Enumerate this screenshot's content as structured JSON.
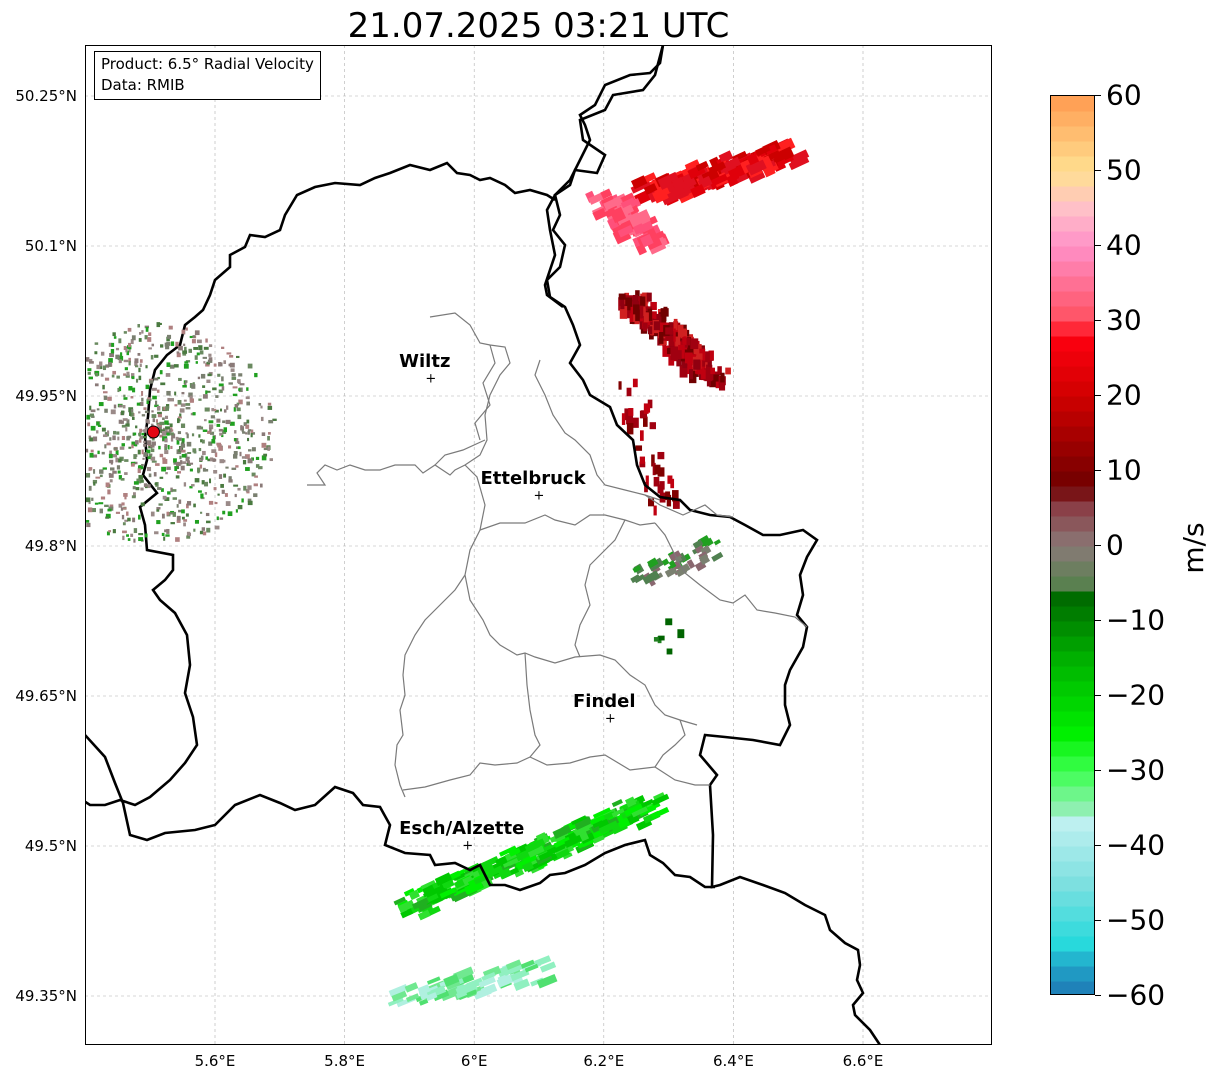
{
  "title": "21.07.2025 03:21 UTC",
  "info_box": {
    "product": "Product: 6.5° Radial Velocity",
    "data": "Data: RMIB"
  },
  "axes": {
    "lat_labels": [
      "50.25°N",
      "50.1°N",
      "49.95°N",
      "49.8°N",
      "49.65°N",
      "49.5°N",
      "49.35°N"
    ],
    "lon_labels": [
      "5.6°E",
      "5.8°E",
      "6°E",
      "6.2°E",
      "6.4°E",
      "6.6°E"
    ],
    "lat_values": [
      50.25,
      50.1,
      49.95,
      49.8,
      49.65,
      49.5,
      49.35
    ],
    "lon_values": [
      5.6,
      5.8,
      6.0,
      6.2,
      6.4,
      6.6
    ],
    "grid": true
  },
  "cities": [
    {
      "name": "Wiltz",
      "lon": 5.933,
      "lat": 49.967
    },
    {
      "name": "Ettelbruck",
      "lon": 6.1,
      "lat": 49.85
    },
    {
      "name": "Findel",
      "lon": 6.21,
      "lat": 49.627
    },
    {
      "name": "Esch/Alzette",
      "lon": 5.99,
      "lat": 49.5
    }
  ],
  "radar_site": {
    "lon": 5.505,
    "lat": 49.914,
    "color": "#e30613"
  },
  "colorbar": {
    "unit": "m/s",
    "min": -60,
    "max": 60,
    "tick_labels": [
      "60",
      "50",
      "40",
      "30",
      "20",
      "10",
      "0",
      "−10",
      "−20",
      "−30",
      "−40",
      "−50",
      "−60"
    ],
    "tick_values": [
      60,
      50,
      40,
      30,
      20,
      10,
      0,
      -10,
      -20,
      -30,
      -40,
      -50,
      -60
    ],
    "stops": [
      {
        "v": -60,
        "c": "#1f77b4"
      },
      {
        "v": -56,
        "c": "#20a4c8"
      },
      {
        "v": -53,
        "c": "#28d9dc"
      },
      {
        "v": -45,
        "c": "#7de0e0"
      },
      {
        "v": -37,
        "c": "#bdf0f0"
      },
      {
        "v": -35,
        "c": "#8ef0b0"
      },
      {
        "v": -30,
        "c": "#3cff50"
      },
      {
        "v": -25,
        "c": "#00f000"
      },
      {
        "v": -15,
        "c": "#00b000"
      },
      {
        "v": -6,
        "c": "#006400"
      },
      {
        "v": -5,
        "c": "#5a8050"
      },
      {
        "v": 0,
        "c": "#8a7a78"
      },
      {
        "v": 5,
        "c": "#8a4048"
      },
      {
        "v": 8,
        "c": "#700000"
      },
      {
        "v": 20,
        "c": "#d00000"
      },
      {
        "v": 28,
        "c": "#ff0010"
      },
      {
        "v": 30,
        "c": "#ff5060"
      },
      {
        "v": 40,
        "c": "#ff90c8"
      },
      {
        "v": 45,
        "c": "#ffc0c8"
      },
      {
        "v": 50,
        "c": "#ffe090"
      },
      {
        "v": 60,
        "c": "#ff9a50"
      }
    ]
  },
  "echo_regions": [
    {
      "name": "north-east-inbound",
      "color": "#e0000a"
    },
    {
      "name": "north-east-pink",
      "color": "#ff507a"
    },
    {
      "name": "east-dark-red",
      "color": "#a00010"
    },
    {
      "name": "south-green-band",
      "color": "#10d810"
    },
    {
      "name": "south-cyan-band",
      "color": "#90f0c0"
    },
    {
      "name": "radar-clutter",
      "color": "#7a8070"
    }
  ]
}
